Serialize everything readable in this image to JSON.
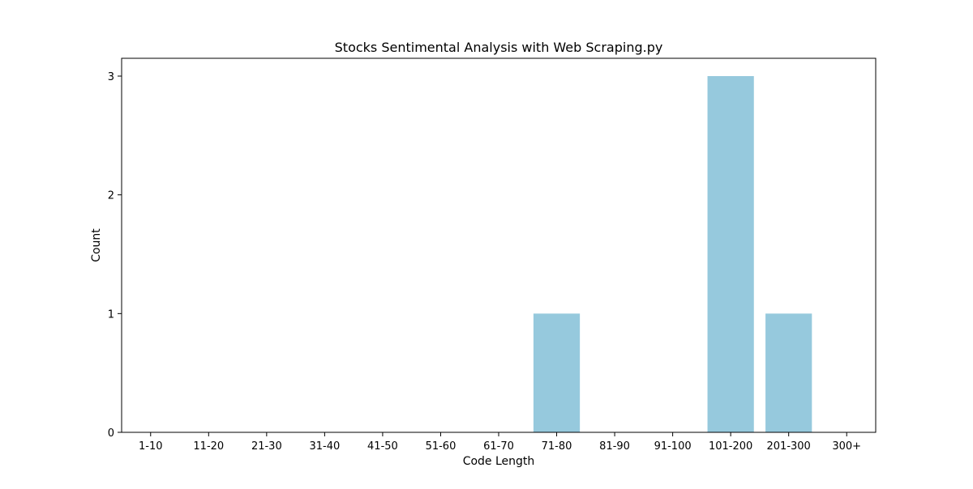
{
  "chart_data": {
    "type": "bar",
    "title": "Stocks Sentimental Analysis with Web Scraping.py",
    "xlabel": "Code Length",
    "ylabel": "Count",
    "categories": [
      "1-10",
      "11-20",
      "21-30",
      "31-40",
      "41-50",
      "51-60",
      "61-70",
      "71-80",
      "81-90",
      "91-100",
      "101-200",
      "201-300",
      "300+"
    ],
    "values": [
      0,
      0,
      0,
      0,
      0,
      0,
      0,
      1,
      0,
      0,
      3,
      1,
      0
    ],
    "ylim": [
      0,
      3.15
    ],
    "yticks": [
      0,
      1,
      2,
      3
    ],
    "bar_color": "#96c9dd",
    "grid": false,
    "legend": "none"
  }
}
